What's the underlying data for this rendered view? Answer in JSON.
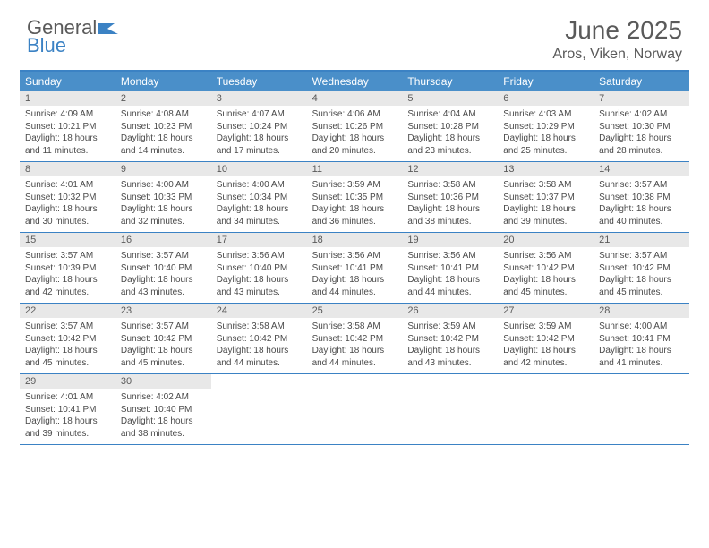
{
  "logo": {
    "general": "General",
    "blue": "Blue"
  },
  "title": "June 2025",
  "location": "Aros, Viken, Norway",
  "colors": {
    "header_blue": "#3b82c4",
    "weekday_bg": "#4a8fc9",
    "daynum_bg": "#e8e8e8",
    "text_gray": "#5a5a5a",
    "body_text": "#4a4a4a",
    "white": "#ffffff"
  },
  "weekdays": [
    "Sunday",
    "Monday",
    "Tuesday",
    "Wednesday",
    "Thursday",
    "Friday",
    "Saturday"
  ],
  "weeks": [
    [
      {
        "n": "1",
        "sunrise": "Sunrise: 4:09 AM",
        "sunset": "Sunset: 10:21 PM",
        "day1": "Daylight: 18 hours",
        "day2": "and 11 minutes."
      },
      {
        "n": "2",
        "sunrise": "Sunrise: 4:08 AM",
        "sunset": "Sunset: 10:23 PM",
        "day1": "Daylight: 18 hours",
        "day2": "and 14 minutes."
      },
      {
        "n": "3",
        "sunrise": "Sunrise: 4:07 AM",
        "sunset": "Sunset: 10:24 PM",
        "day1": "Daylight: 18 hours",
        "day2": "and 17 minutes."
      },
      {
        "n": "4",
        "sunrise": "Sunrise: 4:06 AM",
        "sunset": "Sunset: 10:26 PM",
        "day1": "Daylight: 18 hours",
        "day2": "and 20 minutes."
      },
      {
        "n": "5",
        "sunrise": "Sunrise: 4:04 AM",
        "sunset": "Sunset: 10:28 PM",
        "day1": "Daylight: 18 hours",
        "day2": "and 23 minutes."
      },
      {
        "n": "6",
        "sunrise": "Sunrise: 4:03 AM",
        "sunset": "Sunset: 10:29 PM",
        "day1": "Daylight: 18 hours",
        "day2": "and 25 minutes."
      },
      {
        "n": "7",
        "sunrise": "Sunrise: 4:02 AM",
        "sunset": "Sunset: 10:30 PM",
        "day1": "Daylight: 18 hours",
        "day2": "and 28 minutes."
      }
    ],
    [
      {
        "n": "8",
        "sunrise": "Sunrise: 4:01 AM",
        "sunset": "Sunset: 10:32 PM",
        "day1": "Daylight: 18 hours",
        "day2": "and 30 minutes."
      },
      {
        "n": "9",
        "sunrise": "Sunrise: 4:00 AM",
        "sunset": "Sunset: 10:33 PM",
        "day1": "Daylight: 18 hours",
        "day2": "and 32 minutes."
      },
      {
        "n": "10",
        "sunrise": "Sunrise: 4:00 AM",
        "sunset": "Sunset: 10:34 PM",
        "day1": "Daylight: 18 hours",
        "day2": "and 34 minutes."
      },
      {
        "n": "11",
        "sunrise": "Sunrise: 3:59 AM",
        "sunset": "Sunset: 10:35 PM",
        "day1": "Daylight: 18 hours",
        "day2": "and 36 minutes."
      },
      {
        "n": "12",
        "sunrise": "Sunrise: 3:58 AM",
        "sunset": "Sunset: 10:36 PM",
        "day1": "Daylight: 18 hours",
        "day2": "and 38 minutes."
      },
      {
        "n": "13",
        "sunrise": "Sunrise: 3:58 AM",
        "sunset": "Sunset: 10:37 PM",
        "day1": "Daylight: 18 hours",
        "day2": "and 39 minutes."
      },
      {
        "n": "14",
        "sunrise": "Sunrise: 3:57 AM",
        "sunset": "Sunset: 10:38 PM",
        "day1": "Daylight: 18 hours",
        "day2": "and 40 minutes."
      }
    ],
    [
      {
        "n": "15",
        "sunrise": "Sunrise: 3:57 AM",
        "sunset": "Sunset: 10:39 PM",
        "day1": "Daylight: 18 hours",
        "day2": "and 42 minutes."
      },
      {
        "n": "16",
        "sunrise": "Sunrise: 3:57 AM",
        "sunset": "Sunset: 10:40 PM",
        "day1": "Daylight: 18 hours",
        "day2": "and 43 minutes."
      },
      {
        "n": "17",
        "sunrise": "Sunrise: 3:56 AM",
        "sunset": "Sunset: 10:40 PM",
        "day1": "Daylight: 18 hours",
        "day2": "and 43 minutes."
      },
      {
        "n": "18",
        "sunrise": "Sunrise: 3:56 AM",
        "sunset": "Sunset: 10:41 PM",
        "day1": "Daylight: 18 hours",
        "day2": "and 44 minutes."
      },
      {
        "n": "19",
        "sunrise": "Sunrise: 3:56 AM",
        "sunset": "Sunset: 10:41 PM",
        "day1": "Daylight: 18 hours",
        "day2": "and 44 minutes."
      },
      {
        "n": "20",
        "sunrise": "Sunrise: 3:56 AM",
        "sunset": "Sunset: 10:42 PM",
        "day1": "Daylight: 18 hours",
        "day2": "and 45 minutes."
      },
      {
        "n": "21",
        "sunrise": "Sunrise: 3:57 AM",
        "sunset": "Sunset: 10:42 PM",
        "day1": "Daylight: 18 hours",
        "day2": "and 45 minutes."
      }
    ],
    [
      {
        "n": "22",
        "sunrise": "Sunrise: 3:57 AM",
        "sunset": "Sunset: 10:42 PM",
        "day1": "Daylight: 18 hours",
        "day2": "and 45 minutes."
      },
      {
        "n": "23",
        "sunrise": "Sunrise: 3:57 AM",
        "sunset": "Sunset: 10:42 PM",
        "day1": "Daylight: 18 hours",
        "day2": "and 45 minutes."
      },
      {
        "n": "24",
        "sunrise": "Sunrise: 3:58 AM",
        "sunset": "Sunset: 10:42 PM",
        "day1": "Daylight: 18 hours",
        "day2": "and 44 minutes."
      },
      {
        "n": "25",
        "sunrise": "Sunrise: 3:58 AM",
        "sunset": "Sunset: 10:42 PM",
        "day1": "Daylight: 18 hours",
        "day2": "and 44 minutes."
      },
      {
        "n": "26",
        "sunrise": "Sunrise: 3:59 AM",
        "sunset": "Sunset: 10:42 PM",
        "day1": "Daylight: 18 hours",
        "day2": "and 43 minutes."
      },
      {
        "n": "27",
        "sunrise": "Sunrise: 3:59 AM",
        "sunset": "Sunset: 10:42 PM",
        "day1": "Daylight: 18 hours",
        "day2": "and 42 minutes."
      },
      {
        "n": "28",
        "sunrise": "Sunrise: 4:00 AM",
        "sunset": "Sunset: 10:41 PM",
        "day1": "Daylight: 18 hours",
        "day2": "and 41 minutes."
      }
    ],
    [
      {
        "n": "29",
        "sunrise": "Sunrise: 4:01 AM",
        "sunset": "Sunset: 10:41 PM",
        "day1": "Daylight: 18 hours",
        "day2": "and 39 minutes."
      },
      {
        "n": "30",
        "sunrise": "Sunrise: 4:02 AM",
        "sunset": "Sunset: 10:40 PM",
        "day1": "Daylight: 18 hours",
        "day2": "and 38 minutes."
      },
      null,
      null,
      null,
      null,
      null
    ]
  ]
}
